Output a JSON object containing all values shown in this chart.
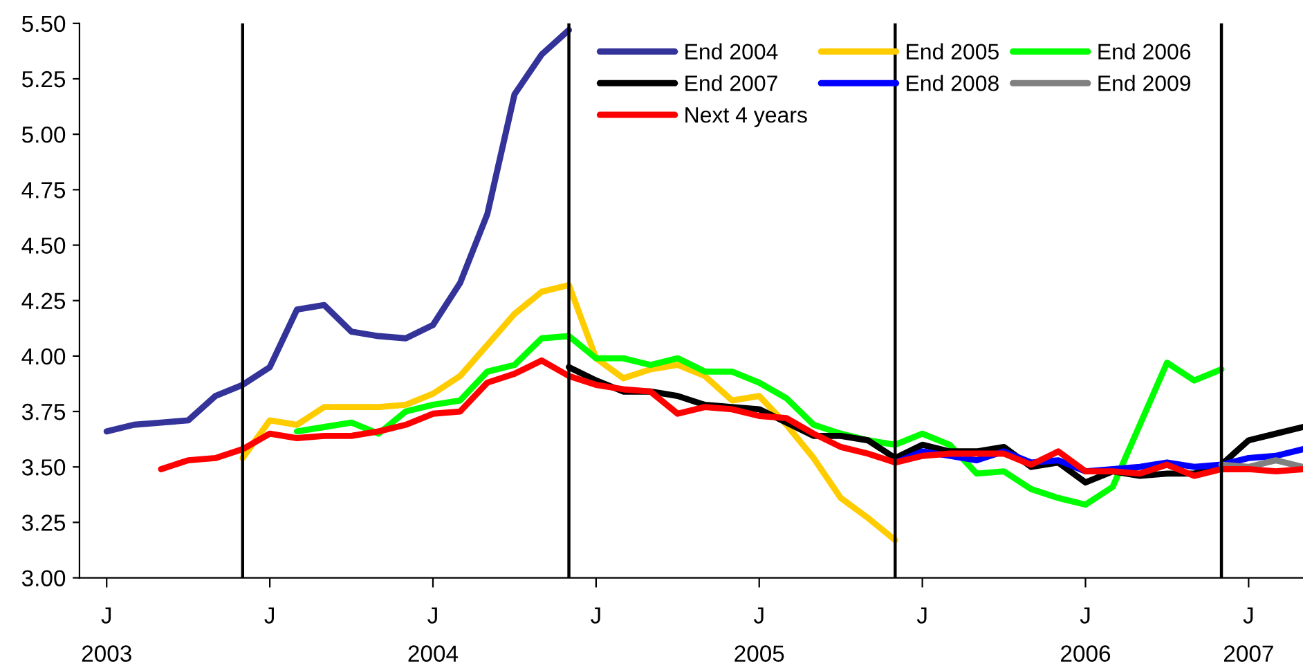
{
  "chart_data": {
    "type": "line",
    "x": [
      "2003-07",
      "2003-08",
      "2003-09",
      "2003-10",
      "2003-11",
      "2003-12",
      "2004-01",
      "2004-02",
      "2004-03",
      "2004-04",
      "2004-05",
      "2004-06",
      "2004-07",
      "2004-08",
      "2004-09",
      "2004-10",
      "2004-11",
      "2004-12",
      "2005-01",
      "2005-02",
      "2005-03",
      "2005-04",
      "2005-05",
      "2005-06",
      "2005-07",
      "2005-08",
      "2005-09",
      "2005-10",
      "2005-11",
      "2005-12",
      "2006-01",
      "2006-02",
      "2006-03",
      "2006-04",
      "2006-05",
      "2006-06",
      "2006-07",
      "2006-08",
      "2006-09",
      "2006-10",
      "2006-11",
      "2006-12",
      "2007-01",
      "2007-02",
      "2007-03"
    ],
    "series": [
      {
        "name": "End 2004",
        "color": "#333399",
        "values": [
          3.66,
          3.69,
          3.7,
          3.71,
          3.82,
          3.87,
          3.95,
          4.21,
          4.23,
          4.11,
          4.09,
          4.08,
          4.14,
          4.33,
          4.64,
          5.18,
          5.36,
          5.47,
          null,
          null,
          null,
          null,
          null,
          null,
          null,
          null,
          null,
          null,
          null,
          null,
          null,
          null,
          null,
          null,
          null,
          null,
          null,
          null,
          null,
          null,
          null,
          null,
          null,
          null,
          null
        ]
      },
      {
        "name": "End 2005",
        "color": "#ffcc00",
        "values": [
          null,
          null,
          null,
          null,
          null,
          3.54,
          3.71,
          3.69,
          3.77,
          3.77,
          3.77,
          3.78,
          3.83,
          3.91,
          4.05,
          4.19,
          4.29,
          4.32,
          3.99,
          3.9,
          3.94,
          3.96,
          3.91,
          3.8,
          3.82,
          3.69,
          3.54,
          3.36,
          3.27,
          3.17,
          null,
          null,
          null,
          null,
          null,
          null,
          null,
          null,
          null,
          null,
          null,
          null,
          null,
          null,
          null
        ]
      },
      {
        "name": "End 2006",
        "color": "#00ff00",
        "values": [
          null,
          null,
          null,
          null,
          null,
          null,
          null,
          3.66,
          3.68,
          3.7,
          3.65,
          3.75,
          3.78,
          3.8,
          3.93,
          3.96,
          4.08,
          4.09,
          3.99,
          3.99,
          3.96,
          3.99,
          3.93,
          3.93,
          3.88,
          3.81,
          3.69,
          3.65,
          3.62,
          3.6,
          3.65,
          3.6,
          3.47,
          3.48,
          3.4,
          3.36,
          3.33,
          3.41,
          3.69,
          3.97,
          3.89,
          3.94,
          null,
          null,
          null
        ]
      },
      {
        "name": "End 2007",
        "color": "#000000",
        "values": [
          null,
          null,
          null,
          null,
          null,
          null,
          null,
          null,
          null,
          null,
          null,
          null,
          null,
          null,
          null,
          null,
          null,
          3.95,
          3.89,
          3.84,
          3.84,
          3.82,
          3.78,
          3.77,
          3.76,
          3.7,
          3.64,
          3.64,
          3.62,
          3.54,
          3.6,
          3.57,
          3.57,
          3.59,
          3.5,
          3.52,
          3.43,
          3.48,
          3.46,
          3.47,
          3.47,
          3.51,
          3.62,
          3.65,
          3.68
        ]
      },
      {
        "name": "End 2008",
        "color": "#0000ff",
        "values": [
          null,
          null,
          null,
          null,
          null,
          null,
          null,
          null,
          null,
          null,
          null,
          null,
          null,
          null,
          null,
          null,
          null,
          null,
          null,
          null,
          null,
          null,
          null,
          null,
          null,
          null,
          null,
          null,
          null,
          3.52,
          3.57,
          3.55,
          3.53,
          3.57,
          3.52,
          3.53,
          3.48,
          3.49,
          3.5,
          3.52,
          3.5,
          3.51,
          3.54,
          3.55,
          3.58
        ]
      },
      {
        "name": "End 2009",
        "color": "#808080",
        "values": [
          null,
          null,
          null,
          null,
          null,
          null,
          null,
          null,
          null,
          null,
          null,
          null,
          null,
          null,
          null,
          null,
          null,
          null,
          null,
          null,
          null,
          null,
          null,
          null,
          null,
          null,
          null,
          null,
          null,
          null,
          null,
          null,
          null,
          null,
          null,
          null,
          null,
          null,
          null,
          null,
          null,
          3.51,
          3.5,
          3.53,
          3.5
        ]
      },
      {
        "name": "Next 4 years",
        "color": "#ff0000",
        "values": [
          null,
          null,
          3.49,
          3.53,
          3.54,
          3.58,
          3.65,
          3.63,
          3.64,
          3.64,
          3.66,
          3.69,
          3.74,
          3.75,
          3.88,
          3.92,
          3.98,
          3.91,
          3.87,
          3.85,
          3.84,
          3.74,
          3.77,
          3.76,
          3.73,
          3.72,
          3.65,
          3.59,
          3.56,
          3.52,
          3.55,
          3.56,
          3.56,
          3.56,
          3.51,
          3.57,
          3.48,
          3.48,
          3.47,
          3.51,
          3.46,
          3.49,
          3.49,
          3.48,
          3.49
        ]
      }
    ],
    "xlim": [
      "2003-06",
      "2007-03"
    ],
    "xticks": [
      {
        "value": "2003-07",
        "label": "J\n2003"
      },
      {
        "value": "2004-01",
        "label": "J"
      },
      {
        "value": "2004-07",
        "label": "J\n2004"
      },
      {
        "value": "2005-01",
        "label": "J"
      },
      {
        "value": "2005-07",
        "label": "J\n2005"
      },
      {
        "value": "2006-01",
        "label": "J"
      },
      {
        "value": "2006-07",
        "label": "J\n2006"
      },
      {
        "value": "2007-01",
        "label": "J\n2007"
      }
    ],
    "ylim": [
      3.0,
      5.5
    ],
    "yticks": [
      {
        "value": 3.0,
        "label": "3.00"
      },
      {
        "value": 3.25,
        "label": "3.25"
      },
      {
        "value": 3.5,
        "label": "3.50"
      },
      {
        "value": 3.75,
        "label": "3.75"
      },
      {
        "value": 4.0,
        "label": "4.00"
      },
      {
        "value": 4.25,
        "label": "4.25"
      },
      {
        "value": 4.5,
        "label": "4.50"
      },
      {
        "value": 4.75,
        "label": "4.75"
      },
      {
        "value": 5.0,
        "label": "5.00"
      },
      {
        "value": 5.25,
        "label": "5.25"
      },
      {
        "value": 5.5,
        "label": "5.50"
      }
    ],
    "ref_lines": [
      {
        "axis": "x",
        "value": "2003-12",
        "color": "#000000"
      },
      {
        "axis": "x",
        "value": "2004-12",
        "color": "#000000"
      },
      {
        "axis": "x",
        "value": "2005-12",
        "color": "#000000"
      },
      {
        "axis": "x",
        "value": "2006-12",
        "color": "#000000"
      }
    ],
    "grid": false,
    "legend": "top right",
    "marker": "none",
    "line_style": "solid"
  }
}
